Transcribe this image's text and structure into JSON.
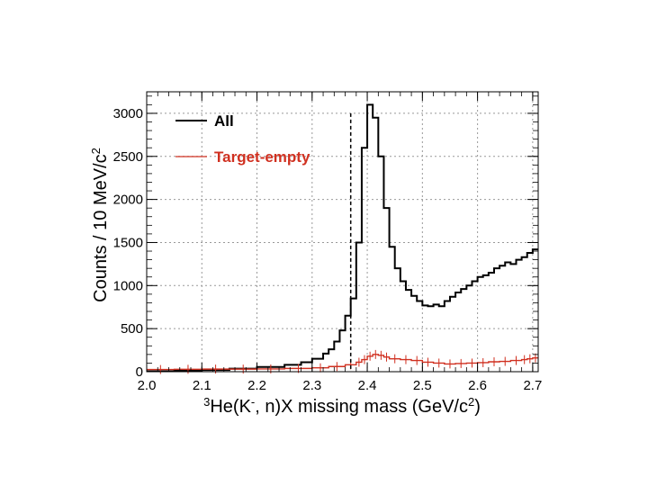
{
  "chart_data": {
    "type": "line",
    "xlim": [
      2.0,
      2.71
    ],
    "ylim": [
      0,
      3250
    ],
    "grid": true,
    "legend_placement": "top-left",
    "x_ticks": [
      "2.0",
      "2.1",
      "2.2",
      "2.3",
      "2.4",
      "2.5",
      "2.6",
      "2.7"
    ],
    "y_ticks": [
      "0",
      "500",
      "1000",
      "1500",
      "2000",
      "2500",
      "3000"
    ],
    "xlabel": {
      "sup1": "3",
      "part1": "He(K",
      "sup2": "-",
      "part2": ", n)X missing mass (GeV/c",
      "sup3": "2",
      "part3": ")"
    },
    "ylabel": {
      "main": "Counts / 10 MeV/c",
      "sup": "2"
    },
    "threshold_line": {
      "x": 2.37,
      "style": "dashed"
    },
    "series": [
      {
        "name": "All",
        "color": "#000000",
        "style": "histogram-step",
        "x": [
          2.0,
          2.05,
          2.1,
          2.15,
          2.2,
          2.25,
          2.28,
          2.3,
          2.32,
          2.33,
          2.34,
          2.35,
          2.36,
          2.37,
          2.38,
          2.39,
          2.4,
          2.41,
          2.42,
          2.43,
          2.44,
          2.45,
          2.46,
          2.47,
          2.48,
          2.49,
          2.5,
          2.51,
          2.52,
          2.53,
          2.54,
          2.55,
          2.56,
          2.57,
          2.58,
          2.59,
          2.6,
          2.61,
          2.62,
          2.63,
          2.64,
          2.65,
          2.66,
          2.67,
          2.68,
          2.69,
          2.7
        ],
        "y": [
          5,
          10,
          20,
          35,
          55,
          80,
          110,
          150,
          210,
          260,
          350,
          480,
          650,
          850,
          1500,
          2600,
          3100,
          2950,
          2500,
          1900,
          1450,
          1200,
          1050,
          950,
          880,
          820,
          770,
          760,
          780,
          760,
          820,
          870,
          920,
          960,
          1000,
          1050,
          1100,
          1120,
          1150,
          1200,
          1230,
          1270,
          1250,
          1300,
          1330,
          1380,
          1420
        ]
      },
      {
        "name": "Target-empty",
        "color": "#d03020",
        "style": "histogram-step-with-errorbars",
        "x": [
          2.0,
          2.05,
          2.1,
          2.15,
          2.2,
          2.25,
          2.3,
          2.33,
          2.36,
          2.38,
          2.39,
          2.4,
          2.41,
          2.42,
          2.43,
          2.44,
          2.46,
          2.48,
          2.5,
          2.52,
          2.54,
          2.56,
          2.58,
          2.6,
          2.62,
          2.64,
          2.66,
          2.68,
          2.69,
          2.7
        ],
        "y": [
          25,
          28,
          30,
          30,
          32,
          38,
          45,
          60,
          80,
          110,
          140,
          180,
          200,
          190,
          170,
          150,
          140,
          130,
          110,
          100,
          90,
          95,
          100,
          105,
          115,
          120,
          130,
          140,
          150,
          160
        ]
      }
    ]
  }
}
